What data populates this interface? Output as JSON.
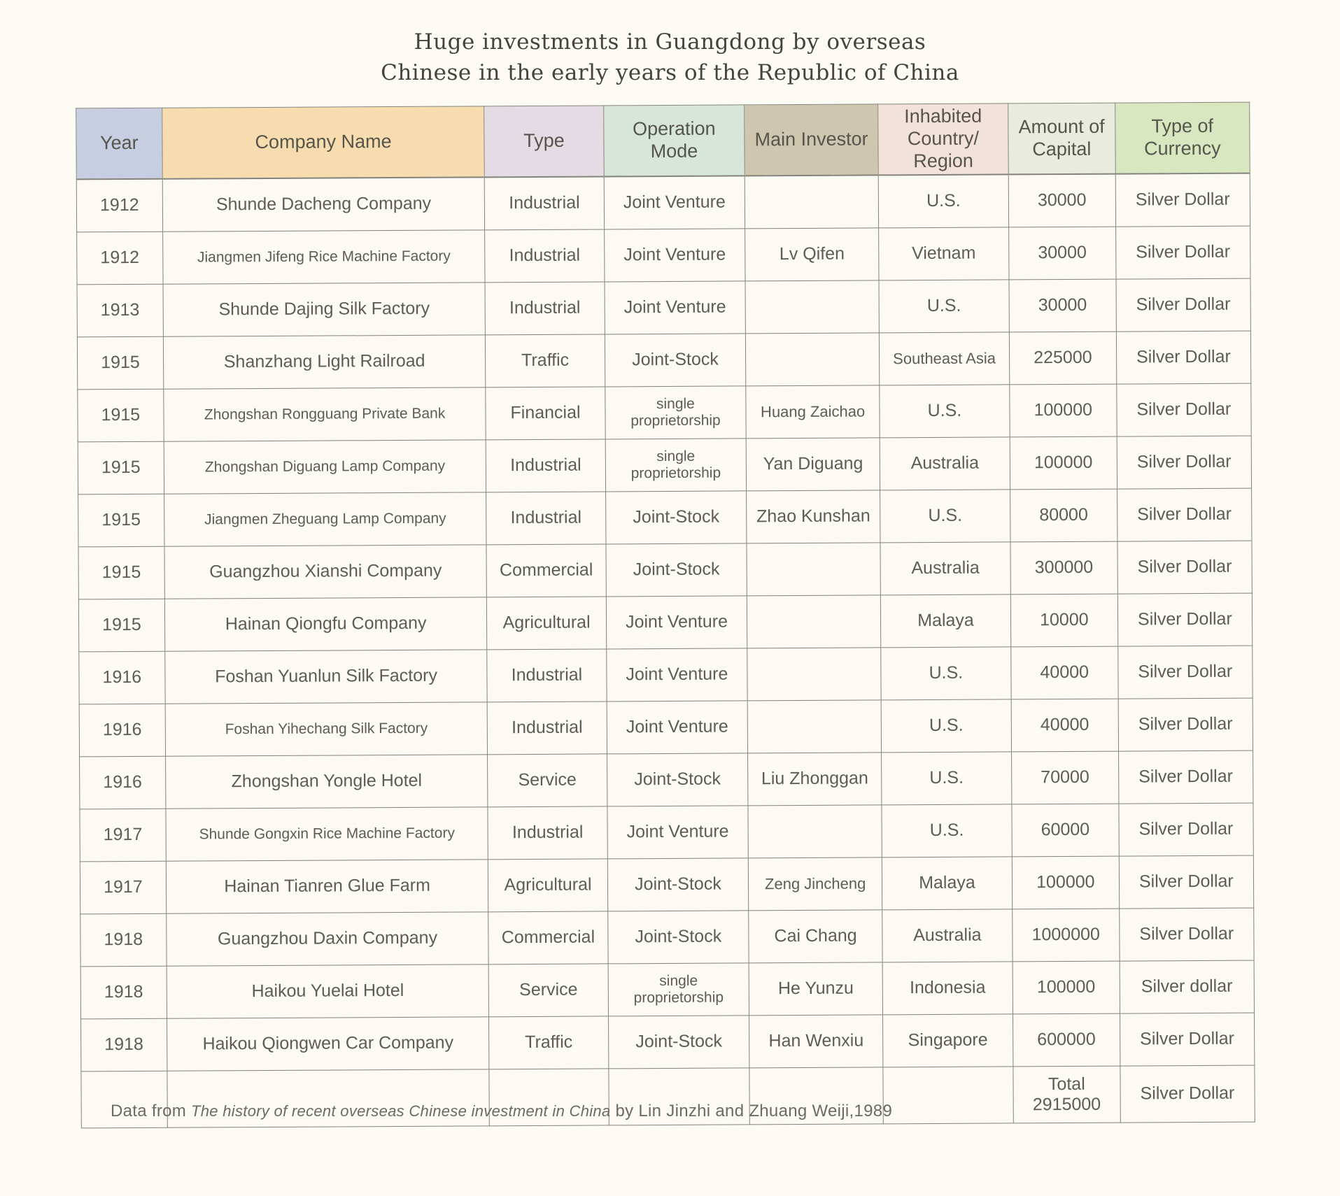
{
  "title": {
    "line1": "Huge investments in Guangdong by overseas",
    "line2": "Chinese in the early years of the Republic of China"
  },
  "table": {
    "columns": [
      {
        "key": "year",
        "label": "Year",
        "bg": "#c7cee1"
      },
      {
        "key": "company",
        "label": "Company Name",
        "bg": "#f6dcae"
      },
      {
        "key": "type",
        "label": "Type",
        "bg": "#e4dbe4"
      },
      {
        "key": "mode",
        "label": "Operation Mode",
        "bg": "#d7e6d8"
      },
      {
        "key": "investor",
        "label": "Main Investor",
        "bg": "#cfc6b0"
      },
      {
        "key": "region",
        "label": "Inhabited Country/ Region",
        "bg": "#f3e2dc"
      },
      {
        "key": "amount",
        "label": "Amount of Capital",
        "bg": "#e8ebdd"
      },
      {
        "key": "currency",
        "label": "Type of Currency",
        "bg": "#d8e7c0"
      }
    ],
    "rows": [
      {
        "year": "1912",
        "company": "Shunde Dacheng Company",
        "type": "Industrial",
        "mode": "Joint Venture",
        "investor": "",
        "region": "U.S.",
        "amount": "30000",
        "currency": "Silver Dollar"
      },
      {
        "year": "1912",
        "company": "Jiangmen Jifeng Rice Machine Factory",
        "type": "Industrial",
        "mode": "Joint Venture",
        "investor": "Lv Qifen",
        "region": "Vietnam",
        "amount": "30000",
        "currency": "Silver Dollar"
      },
      {
        "year": "1913",
        "company": "Shunde Dajing Silk Factory",
        "type": "Industrial",
        "mode": "Joint Venture",
        "investor": "",
        "region": "U.S.",
        "amount": "30000",
        "currency": "Silver Dollar"
      },
      {
        "year": "1915",
        "company": "Shanzhang Light Railroad",
        "type": "Traffic",
        "mode": "Joint-Stock",
        "investor": "",
        "region": "Southeast Asia",
        "amount": "225000",
        "currency": "Silver Dollar"
      },
      {
        "year": "1915",
        "company": "Zhongshan Rongguang Private Bank",
        "type": "Financial",
        "mode": "single proprietorship",
        "investor": "Huang Zaichao",
        "region": "U.S.",
        "amount": "100000",
        "currency": "Silver Dollar"
      },
      {
        "year": "1915",
        "company": "Zhongshan Diguang Lamp Company",
        "type": "Industrial",
        "mode": "single proprietorship",
        "investor": "Yan Diguang",
        "region": "Australia",
        "amount": "100000",
        "currency": "Silver Dollar"
      },
      {
        "year": "1915",
        "company": "Jiangmen Zheguang Lamp Company",
        "type": "Industrial",
        "mode": "Joint-Stock",
        "investor": "Zhao Kunshan",
        "region": "U.S.",
        "amount": "80000",
        "currency": "Silver Dollar"
      },
      {
        "year": "1915",
        "company": "Guangzhou Xianshi Company",
        "type": "Commercial",
        "mode": "Joint-Stock",
        "investor": "",
        "region": "Australia",
        "amount": "300000",
        "currency": "Silver Dollar"
      },
      {
        "year": "1915",
        "company": "Hainan Qiongfu Company",
        "type": "Agricultural",
        "mode": "Joint Venture",
        "investor": "",
        "region": "Malaya",
        "amount": "10000",
        "currency": "Silver Dollar"
      },
      {
        "year": "1916",
        "company": "Foshan Yuanlun Silk Factory",
        "type": "Industrial",
        "mode": "Joint Venture",
        "investor": "",
        "region": "U.S.",
        "amount": "40000",
        "currency": "Silver Dollar"
      },
      {
        "year": "1916",
        "company": "Foshan Yihechang Silk Factory",
        "type": "Industrial",
        "mode": "Joint Venture",
        "investor": "",
        "region": "U.S.",
        "amount": "40000",
        "currency": "Silver Dollar"
      },
      {
        "year": "1916",
        "company": "Zhongshan Yongle Hotel",
        "type": "Service",
        "mode": "Joint-Stock",
        "investor": "Liu Zhonggan",
        "region": "U.S.",
        "amount": "70000",
        "currency": "Silver Dollar"
      },
      {
        "year": "1917",
        "company": "Shunde Gongxin Rice Machine Factory",
        "type": "Industrial",
        "mode": "Joint Venture",
        "investor": "",
        "region": "U.S.",
        "amount": "60000",
        "currency": "Silver Dollar"
      },
      {
        "year": "1917",
        "company": "Hainan Tianren Glue Farm",
        "type": "Agricultural",
        "mode": "Joint-Stock",
        "investor": "Zeng Jincheng",
        "region": "Malaya",
        "amount": "100000",
        "currency": "Silver Dollar"
      },
      {
        "year": "1918",
        "company": "Guangzhou Daxin Company",
        "type": "Commercial",
        "mode": "Joint-Stock",
        "investor": "Cai Chang",
        "region": "Australia",
        "amount": "1000000",
        "currency": "Silver Dollar"
      },
      {
        "year": "1918",
        "company": "Haikou Yuelai Hotel",
        "type": "Service",
        "mode": "single proprietorship",
        "investor": "He Yunzu",
        "region": "Indonesia",
        "amount": "100000",
        "currency": "Silver dollar"
      },
      {
        "year": "1918",
        "company": "Haikou Qiongwen Car Company",
        "type": "Traffic",
        "mode": "Joint-Stock",
        "investor": "Han Wenxiu",
        "region": "Singapore",
        "amount": "600000",
        "currency": "Silver Dollar"
      }
    ],
    "total": {
      "label": "Total",
      "value": "2915000",
      "currency": "Silver Dollar"
    }
  },
  "footer": {
    "prefix": "Data from ",
    "source": "The history of recent overseas Chinese investment in China",
    "suffix": " by Lin Jinzhi and Zhuang Weiji,1989"
  }
}
